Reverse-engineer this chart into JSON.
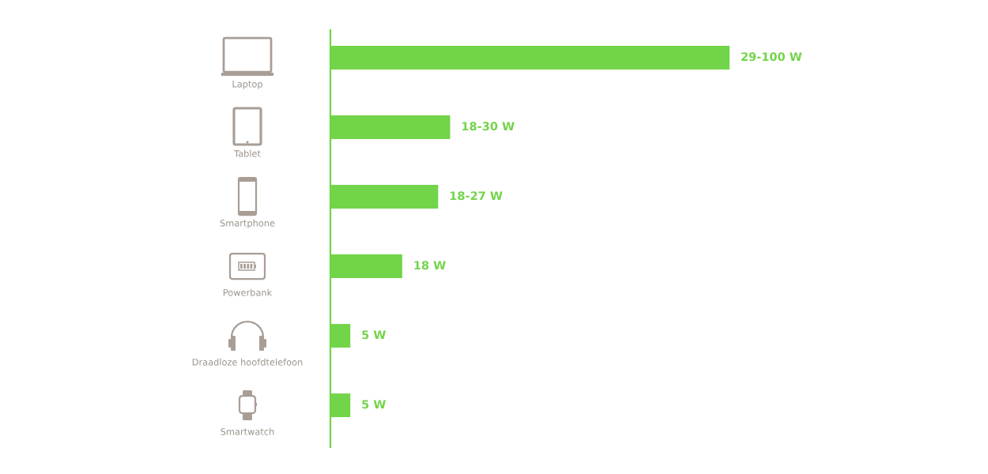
{
  "chart_data": {
    "type": "bar",
    "orientation": "horizontal",
    "categories": [
      "Laptop",
      "Tablet",
      "Smartphone",
      "Powerbank",
      "Draadloze hoofdtelefoon",
      "Smartwatch"
    ],
    "values": [
      100,
      30,
      27,
      18,
      5,
      5
    ],
    "value_labels": [
      "29-100 W",
      "18-30 W",
      "18-27 W",
      "18 W",
      "5 W",
      "5 W"
    ],
    "color": "#72d449"
  }
}
